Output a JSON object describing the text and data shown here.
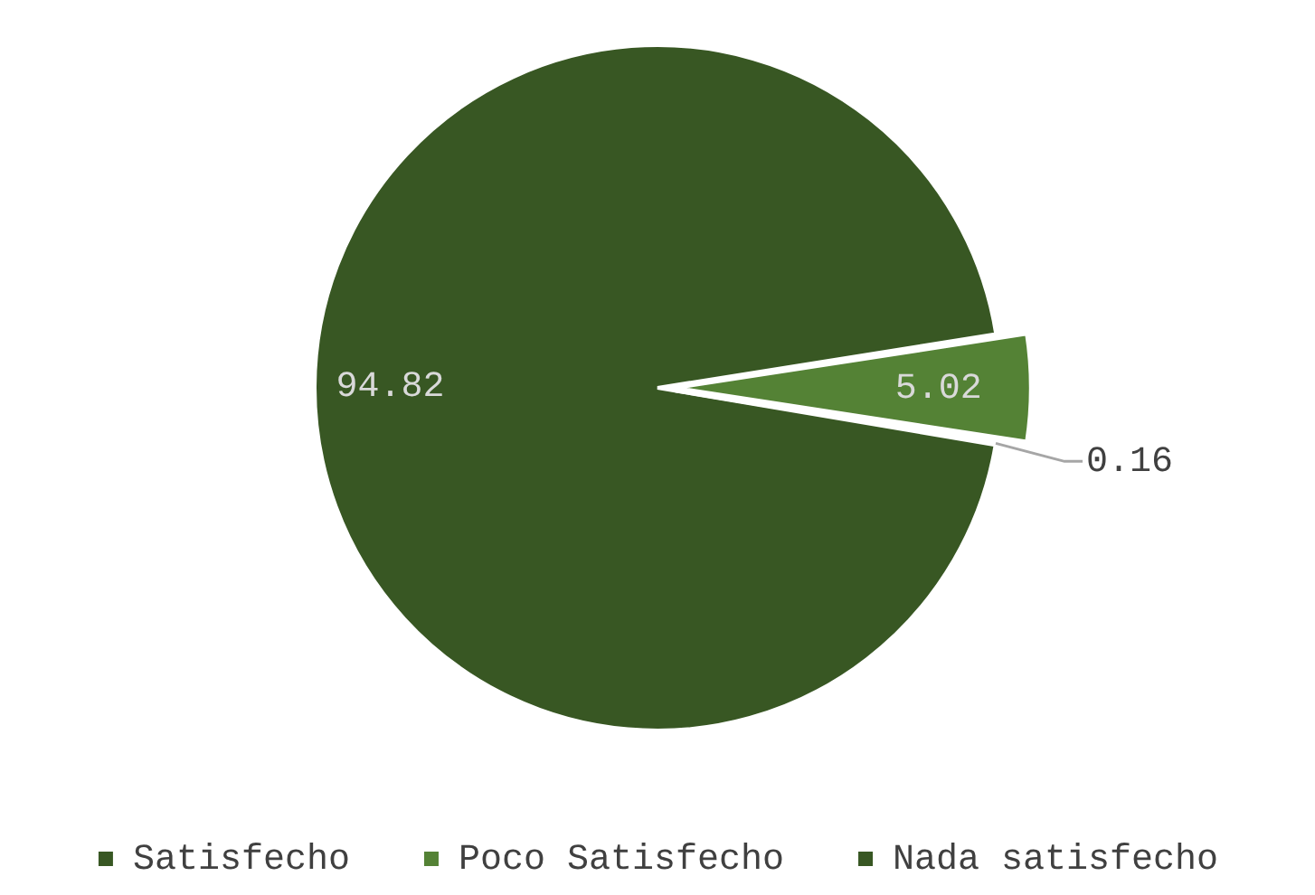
{
  "chart_data": {
    "type": "pie",
    "categories": [
      "Satisfecho",
      "Poco Satisfecho",
      "Nada satisfecho"
    ],
    "values": [
      94.82,
      5.02,
      0.16
    ],
    "colors": [
      "#385723",
      "#548235",
      "#385723"
    ],
    "data_labels": true,
    "legend": "bottom"
  }
}
